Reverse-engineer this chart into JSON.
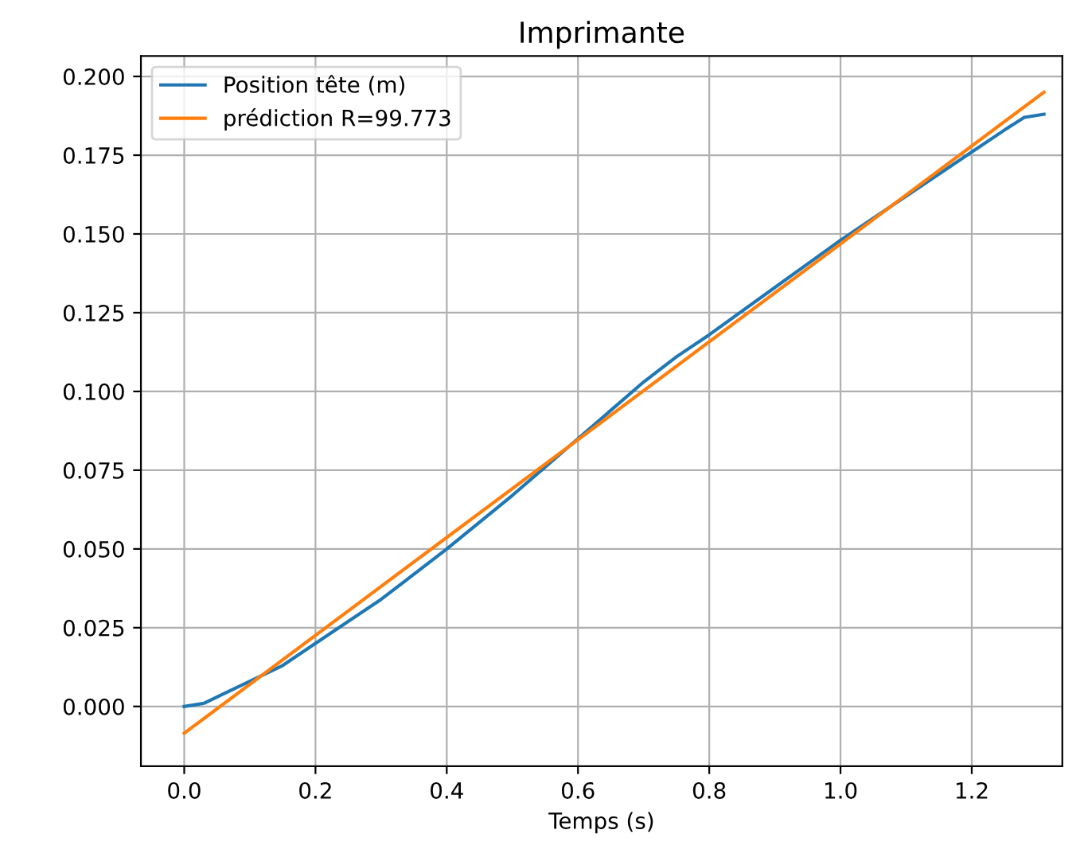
{
  "chart_data": {
    "type": "line",
    "title": "Imprimante",
    "xlabel": "Temps (s)",
    "series": [
      {
        "name": "Position tête (m)",
        "color": "#1f77b4",
        "x": [
          0,
          0.03,
          0.06,
          0.1,
          0.15,
          0.2,
          0.3,
          0.4,
          0.5,
          0.55,
          0.6,
          0.65,
          0.7,
          0.75,
          0.8,
          0.9,
          1.0,
          1.1,
          1.2,
          1.25,
          1.28,
          1.31
        ],
        "values": [
          0,
          0.001,
          0.004,
          0.008,
          0.013,
          0.02,
          0.034,
          0.05,
          0.067,
          0.076,
          0.085,
          0.094,
          0.103,
          0.111,
          0.118,
          0.133,
          0.148,
          0.162,
          0.176,
          0.183,
          0.187,
          0.188
        ]
      },
      {
        "name": "prédiction R=99.773",
        "color": "#ff7f0e",
        "x": [
          0,
          1.31
        ],
        "values": [
          -0.0085,
          0.195
        ]
      }
    ],
    "xlim": [
      -0.066,
      1.338
    ],
    "xticks": [
      {
        "value": 0,
        "label": "0.0"
      },
      0.2,
      0.4,
      0.6,
      0.8,
      {
        "value": 1,
        "label": "1.0"
      },
      1.2
    ],
    "ylim": [
      -0.019,
      0.2065
    ],
    "yticks": [
      {
        "value": 0,
        "label": "0.000"
      },
      0.025,
      {
        "value": 0.05,
        "label": "0.050"
      },
      0.075,
      {
        "value": 0.1,
        "label": "0.100"
      },
      0.125,
      {
        "value": 0.15,
        "label": "0.150"
      },
      0.175,
      {
        "value": 0.2,
        "label": "0.200"
      }
    ],
    "grid": true,
    "legend": "top left",
    "line_style": "solid",
    "marker": "none"
  }
}
